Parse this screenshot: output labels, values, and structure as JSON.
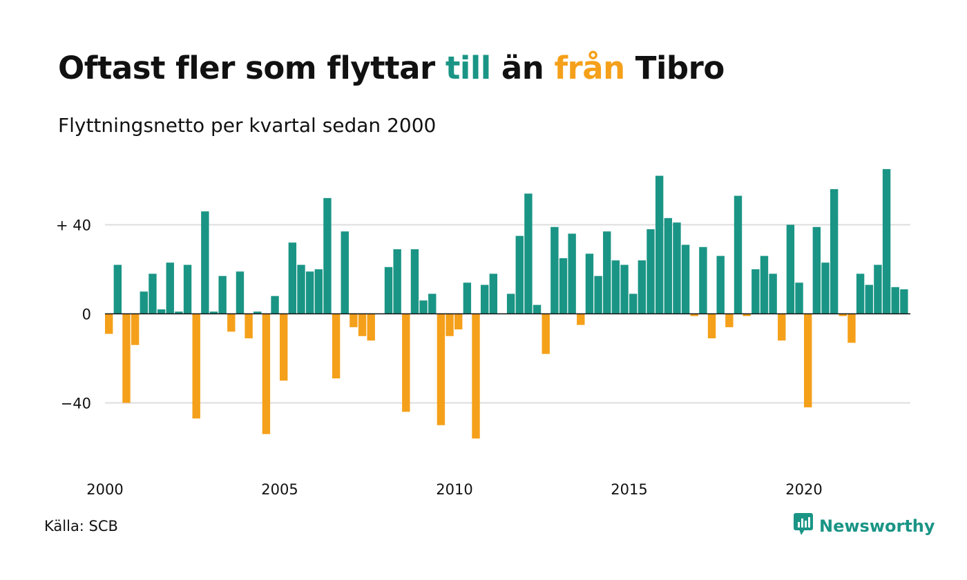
{
  "title": {
    "part1": "Oftast fler som flyttar ",
    "till": "till",
    "part2": " än ",
    "fran": "från",
    "part3": " Tibro"
  },
  "subtitle": "Flyttningsnetto per kvartal sedan 2000",
  "source": "Källa: SCB",
  "brand": {
    "name": "Newsworthy",
    "icon": "newsworthy-chart-bubble-icon"
  },
  "colors": {
    "positive": "#1a9585",
    "negative": "#f5a01a",
    "text": "#111111",
    "grid": "#dddddd"
  },
  "chart_data": {
    "type": "bar",
    "x_start": "2000 Q1",
    "ylim": [
      -66,
      68
    ],
    "yticks": [
      {
        "value": 40,
        "label": "+ 40"
      },
      {
        "value": 0,
        "label": "0"
      },
      {
        "value": -40,
        "label": "−40"
      }
    ],
    "xticks": [
      "2000",
      "2005",
      "2010",
      "2015",
      "2020"
    ],
    "grid": true,
    "values": [
      -9,
      22,
      -40,
      -14,
      10,
      18,
      2,
      23,
      1,
      22,
      -47,
      46,
      1,
      17,
      -8,
      19,
      -11,
      1,
      -54,
      8,
      -30,
      32,
      22,
      19,
      20,
      52,
      -29,
      37,
      -6,
      -10,
      -12,
      0,
      21,
      29,
      -44,
      29,
      6,
      9,
      -50,
      -10,
      -7,
      14,
      -56,
      13,
      18,
      0,
      9,
      35,
      54,
      4,
      -18,
      39,
      25,
      36,
      -5,
      27,
      17,
      37,
      24,
      22,
      9,
      24,
      38,
      62,
      43,
      41,
      31,
      -1,
      30,
      -11,
      26,
      -6,
      53,
      -1,
      20,
      26,
      18,
      -12,
      40,
      14,
      -42,
      39,
      23,
      56,
      -1,
      -13,
      18,
      13,
      22,
      65,
      12,
      11
    ]
  }
}
